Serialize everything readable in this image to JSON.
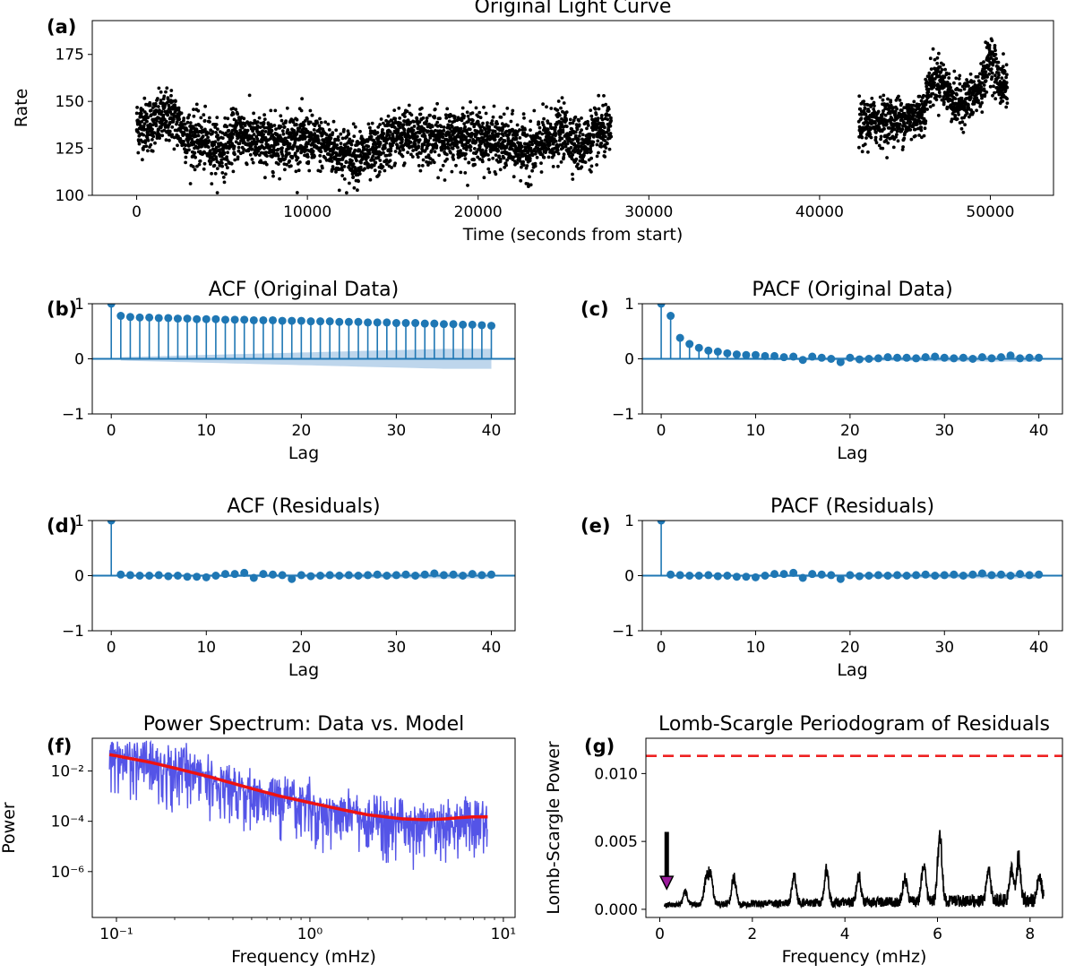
{
  "colors": {
    "stem": "#1f77b4",
    "band": "#a8c8e6",
    "data_line": "#4b4be6",
    "model_line": "#ee1111",
    "threshold": "#ee2222",
    "marker": "#000000",
    "arrow_head": "#9b1a9b"
  },
  "chart_data": [
    {
      "id": "a",
      "panel_label": "(a)",
      "type": "scatter",
      "title": "Original Light Curve",
      "xlabel": "Time (seconds from start)",
      "ylabel": "Rate",
      "xlim": [
        -2600,
        53700
      ],
      "ylim": [
        100,
        193
      ],
      "xticks": [
        0,
        10000,
        20000,
        30000,
        40000,
        50000
      ],
      "xtick_labels": [
        "0",
        "10000",
        "20000",
        "30000",
        "40000",
        "50000"
      ],
      "yticks": [
        100,
        125,
        150,
        175
      ],
      "ytick_labels": [
        "100",
        "125",
        "150",
        "175"
      ],
      "segments": [
        {
          "start": 0,
          "end": 27800,
          "mean_profile": [
            [
              0,
              137
            ],
            [
              1000,
              138
            ],
            [
              2000,
              143
            ],
            [
              3000,
              131
            ],
            [
              4000,
              128
            ],
            [
              5000,
              124
            ],
            [
              6000,
              134
            ],
            [
              7000,
              128
            ],
            [
              8000,
              128
            ],
            [
              9000,
              130
            ],
            [
              10000,
              129
            ],
            [
              11000,
              127
            ],
            [
              12000,
              122
            ],
            [
              13000,
              121
            ],
            [
              14000,
              122
            ],
            [
              15000,
              131
            ],
            [
              16000,
              132
            ],
            [
              17000,
              131
            ],
            [
              18000,
              130
            ],
            [
              19000,
              132
            ],
            [
              20000,
              131
            ],
            [
              21000,
              128
            ],
            [
              22000,
              127
            ],
            [
              23000,
              123
            ],
            [
              24000,
              129
            ],
            [
              25000,
              134
            ],
            [
              26000,
              126
            ],
            [
              27000,
              133
            ],
            [
              27800,
              134
            ]
          ],
          "scatter": 7
        },
        {
          "start": 42300,
          "end": 51000,
          "mean_profile": [
            [
              42300,
              137
            ],
            [
              43000,
              139
            ],
            [
              44000,
              140
            ],
            [
              45000,
              140
            ],
            [
              46000,
              143
            ],
            [
              46500,
              160
            ],
            [
              47000,
              163
            ],
            [
              48000,
              148
            ],
            [
              49000,
              152
            ],
            [
              49500,
              158
            ],
            [
              50000,
              175
            ],
            [
              50500,
              160
            ],
            [
              51000,
              158
            ]
          ],
          "scatter": 6
        }
      ]
    },
    {
      "id": "b",
      "panel_label": "(b)",
      "type": "stem",
      "title": "ACF (Original Data)",
      "xlabel": "Lag",
      "ylabel": "",
      "xlim": [
        -2,
        42.5
      ],
      "ylim": [
        -1,
        1
      ],
      "xticks": [
        0,
        10,
        20,
        30,
        40
      ],
      "xtick_labels": [
        "0",
        "10",
        "20",
        "30",
        "40"
      ],
      "yticks": [
        -1,
        0,
        1
      ],
      "ytick_labels": [
        "−1",
        "0",
        "1"
      ],
      "lags": [
        0,
        1,
        2,
        3,
        4,
        5,
        6,
        7,
        8,
        9,
        10,
        11,
        12,
        13,
        14,
        15,
        16,
        17,
        18,
        19,
        20,
        21,
        22,
        23,
        24,
        25,
        26,
        27,
        28,
        29,
        30,
        31,
        32,
        33,
        34,
        35,
        36,
        37,
        38,
        39,
        40
      ],
      "values": [
        1.0,
        0.78,
        0.76,
        0.75,
        0.75,
        0.74,
        0.74,
        0.73,
        0.73,
        0.72,
        0.72,
        0.72,
        0.71,
        0.71,
        0.71,
        0.7,
        0.7,
        0.7,
        0.69,
        0.69,
        0.69,
        0.68,
        0.68,
        0.68,
        0.67,
        0.67,
        0.67,
        0.66,
        0.66,
        0.66,
        0.65,
        0.65,
        0.65,
        0.64,
        0.64,
        0.63,
        0.63,
        0.62,
        0.62,
        0.61,
        0.6
      ],
      "confidence_band_max": 0.18
    },
    {
      "id": "c",
      "panel_label": "(c)",
      "type": "stem",
      "title": "PACF (Original Data)",
      "xlabel": "Lag",
      "ylabel": "",
      "xlim": [
        -2,
        42.5
      ],
      "ylim": [
        -1,
        1
      ],
      "xticks": [
        0,
        10,
        20,
        30,
        40
      ],
      "xtick_labels": [
        "0",
        "10",
        "20",
        "30",
        "40"
      ],
      "yticks": [
        -1,
        0,
        1
      ],
      "ytick_labels": [
        "−1",
        "0",
        "1"
      ],
      "lags": [
        0,
        1,
        2,
        3,
        4,
        5,
        6,
        7,
        8,
        9,
        10,
        11,
        12,
        13,
        14,
        15,
        16,
        17,
        18,
        19,
        20,
        21,
        22,
        23,
        24,
        25,
        26,
        27,
        28,
        29,
        30,
        31,
        32,
        33,
        34,
        35,
        36,
        37,
        38,
        39,
        40
      ],
      "values": [
        1.0,
        0.78,
        0.38,
        0.27,
        0.2,
        0.15,
        0.13,
        0.1,
        0.08,
        0.07,
        0.07,
        0.05,
        0.05,
        0.03,
        0.04,
        -0.02,
        0.04,
        0.02,
        0.0,
        -0.06,
        0.02,
        -0.01,
        0.0,
        0.01,
        0.03,
        0.02,
        0.02,
        0.01,
        0.03,
        0.04,
        0.02,
        0.01,
        0.02,
        0.0,
        0.03,
        0.01,
        0.03,
        0.06,
        0.01,
        0.02,
        0.02
      ],
      "confidence_band_max": 0.05
    },
    {
      "id": "d",
      "panel_label": "(d)",
      "type": "stem",
      "title": "ACF (Residuals)",
      "xlabel": "Lag",
      "ylabel": "",
      "xlim": [
        -2,
        42.5
      ],
      "ylim": [
        -1,
        1
      ],
      "xticks": [
        0,
        10,
        20,
        30,
        40
      ],
      "xtick_labels": [
        "0",
        "10",
        "20",
        "30",
        "40"
      ],
      "yticks": [
        -1,
        0,
        1
      ],
      "ytick_labels": [
        "−1",
        "0",
        "1"
      ],
      "lags": [
        0,
        1,
        2,
        3,
        4,
        5,
        6,
        7,
        8,
        9,
        10,
        11,
        12,
        13,
        14,
        15,
        16,
        17,
        18,
        19,
        20,
        21,
        22,
        23,
        24,
        25,
        26,
        27,
        28,
        29,
        30,
        31,
        32,
        33,
        34,
        35,
        36,
        37,
        38,
        39,
        40
      ],
      "values": [
        1.0,
        0.02,
        0.01,
        0.0,
        0.0,
        0.01,
        -0.01,
        0.0,
        -0.02,
        -0.02,
        -0.03,
        0.0,
        0.03,
        0.03,
        0.05,
        -0.04,
        0.03,
        0.02,
        0.01,
        -0.06,
        0.01,
        -0.01,
        0.0,
        0.01,
        0.0,
        0.01,
        0.0,
        0.01,
        0.02,
        0.0,
        0.01,
        0.02,
        0.0,
        0.02,
        0.04,
        0.01,
        0.02,
        0.0,
        0.03,
        0.01,
        0.02
      ],
      "confidence_band_max": 0.05
    },
    {
      "id": "e",
      "panel_label": "(e)",
      "type": "stem",
      "title": "PACF (Residuals)",
      "xlabel": "Lag",
      "ylabel": "",
      "xlim": [
        -2,
        42.5
      ],
      "ylim": [
        -1,
        1
      ],
      "xticks": [
        0,
        10,
        20,
        30,
        40
      ],
      "xtick_labels": [
        "0",
        "10",
        "20",
        "30",
        "40"
      ],
      "yticks": [
        -1,
        0,
        1
      ],
      "ytick_labels": [
        "−1",
        "0",
        "1"
      ],
      "lags": [
        0,
        1,
        2,
        3,
        4,
        5,
        6,
        7,
        8,
        9,
        10,
        11,
        12,
        13,
        14,
        15,
        16,
        17,
        18,
        19,
        20,
        21,
        22,
        23,
        24,
        25,
        26,
        27,
        28,
        29,
        30,
        31,
        32,
        33,
        34,
        35,
        36,
        37,
        38,
        39,
        40
      ],
      "values": [
        1.0,
        0.02,
        0.01,
        0.0,
        0.0,
        0.01,
        -0.01,
        0.0,
        -0.02,
        -0.02,
        -0.03,
        0.0,
        0.03,
        0.03,
        0.05,
        -0.04,
        0.03,
        0.02,
        0.01,
        -0.06,
        0.01,
        -0.01,
        0.0,
        0.01,
        0.0,
        0.01,
        0.0,
        0.01,
        0.02,
        0.0,
        0.01,
        0.02,
        0.0,
        0.02,
        0.04,
        0.01,
        0.02,
        0.0,
        0.03,
        0.01,
        0.02
      ],
      "confidence_band_max": 0.05
    },
    {
      "id": "f",
      "panel_label": "(f)",
      "type": "line",
      "title": "Power Spectrum: Data vs. Model",
      "xlabel": "Frequency (mHz)",
      "ylabel": "Power",
      "xscale": "log",
      "yscale": "log",
      "xlim": [
        0.075,
        11.5
      ],
      "ylim": [
        1.5e-08,
        0.2
      ],
      "xticks": [
        0.1,
        1,
        10
      ],
      "xtick_labels": [
        "10⁻¹",
        "10⁰",
        "10¹"
      ],
      "yticks": [
        0.01,
        0.0001,
        1e-06
      ],
      "ytick_labels": [
        "10⁻²",
        "10⁻⁴",
        "10⁻⁶"
      ],
      "freq_range": [
        0.092,
        8.3
      ],
      "model": [
        [
          0.092,
          0.045
        ],
        [
          0.1,
          0.04
        ],
        [
          0.15,
          0.022
        ],
        [
          0.2,
          0.013
        ],
        [
          0.3,
          0.006
        ],
        [
          0.5,
          0.002
        ],
        [
          0.7,
          0.001
        ],
        [
          1.0,
          0.00055
        ],
        [
          1.5,
          0.00028
        ],
        [
          2.0,
          0.00018
        ],
        [
          3.0,
          0.000125
        ],
        [
          4.0,
          0.000115
        ],
        [
          5.0,
          0.000125
        ],
        [
          6.0,
          0.00014
        ],
        [
          7.0,
          0.00015
        ],
        [
          8.3,
          0.00015
        ]
      ],
      "series": [
        {
          "name": "Data",
          "color": "#4b4be6"
        },
        {
          "name": "Model",
          "color": "#ee1111"
        }
      ]
    },
    {
      "id": "g",
      "panel_label": "(g)",
      "type": "line",
      "title": "Lomb-Scargle Periodogram of Residuals",
      "xlabel": "Frequency (mHz)",
      "ylabel": "Lomb-Scargle Power",
      "xlim": [
        -0.3,
        8.7
      ],
      "ylim": [
        -0.0006,
        0.0126
      ],
      "xticks": [
        0,
        2,
        4,
        6,
        8
      ],
      "xtick_labels": [
        "0",
        "2",
        "4",
        "6",
        "8"
      ],
      "yticks": [
        0.0,
        0.005,
        0.01
      ],
      "ytick_labels": [
        "0.000",
        "0.005",
        "0.010"
      ],
      "freq_range": [
        0.1,
        8.3
      ],
      "threshold": 0.0113,
      "arrow": {
        "freq": 0.15,
        "power_top": 0.0057,
        "power_tip": 0.0015
      },
      "peaks": [
        [
          0.55,
          0.0011
        ],
        [
          1.0,
          0.0022
        ],
        [
          1.1,
          0.0026
        ],
        [
          1.6,
          0.0023
        ],
        [
          2.9,
          0.0025
        ],
        [
          3.6,
          0.0026
        ],
        [
          4.3,
          0.0023
        ],
        [
          5.3,
          0.0022
        ],
        [
          5.7,
          0.0032
        ],
        [
          6.05,
          0.0061
        ],
        [
          7.1,
          0.0026
        ],
        [
          7.6,
          0.0027
        ],
        [
          7.75,
          0.0034
        ],
        [
          8.2,
          0.0021
        ]
      ]
    }
  ]
}
